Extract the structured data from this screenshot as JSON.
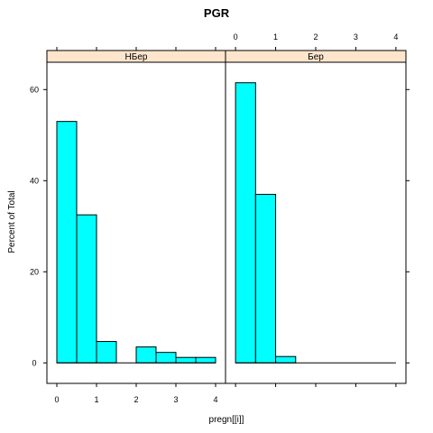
{
  "chart_data": {
    "type": "bar",
    "title": "PGR",
    "xlabel": "pregn[[i]]",
    "ylabel": "Percent of Total",
    "bar_color": "#00ffff",
    "strip_color": "#ffe5cc",
    "bin_width": 0.5,
    "xlim": [
      -0.25,
      4.25
    ],
    "ylim": [
      -4.5,
      66
    ],
    "x_ticks": [
      0,
      1,
      2,
      3,
      4
    ],
    "y_ticks": [
      0,
      20,
      40,
      60
    ],
    "panels": [
      {
        "name": "НБер",
        "bins": [
          0,
          0.5,
          1,
          1.5,
          2,
          2.5,
          3,
          3.5
        ],
        "values": [
          53,
          32.5,
          4.7,
          0,
          3.5,
          2.3,
          1.2,
          1.2
        ]
      },
      {
        "name": "Бер",
        "bins": [
          0,
          0.5,
          1,
          1.5,
          2,
          2.5,
          3,
          3.5
        ],
        "values": [
          61.5,
          37,
          1.4,
          0,
          0,
          0,
          0,
          0
        ]
      }
    ]
  }
}
